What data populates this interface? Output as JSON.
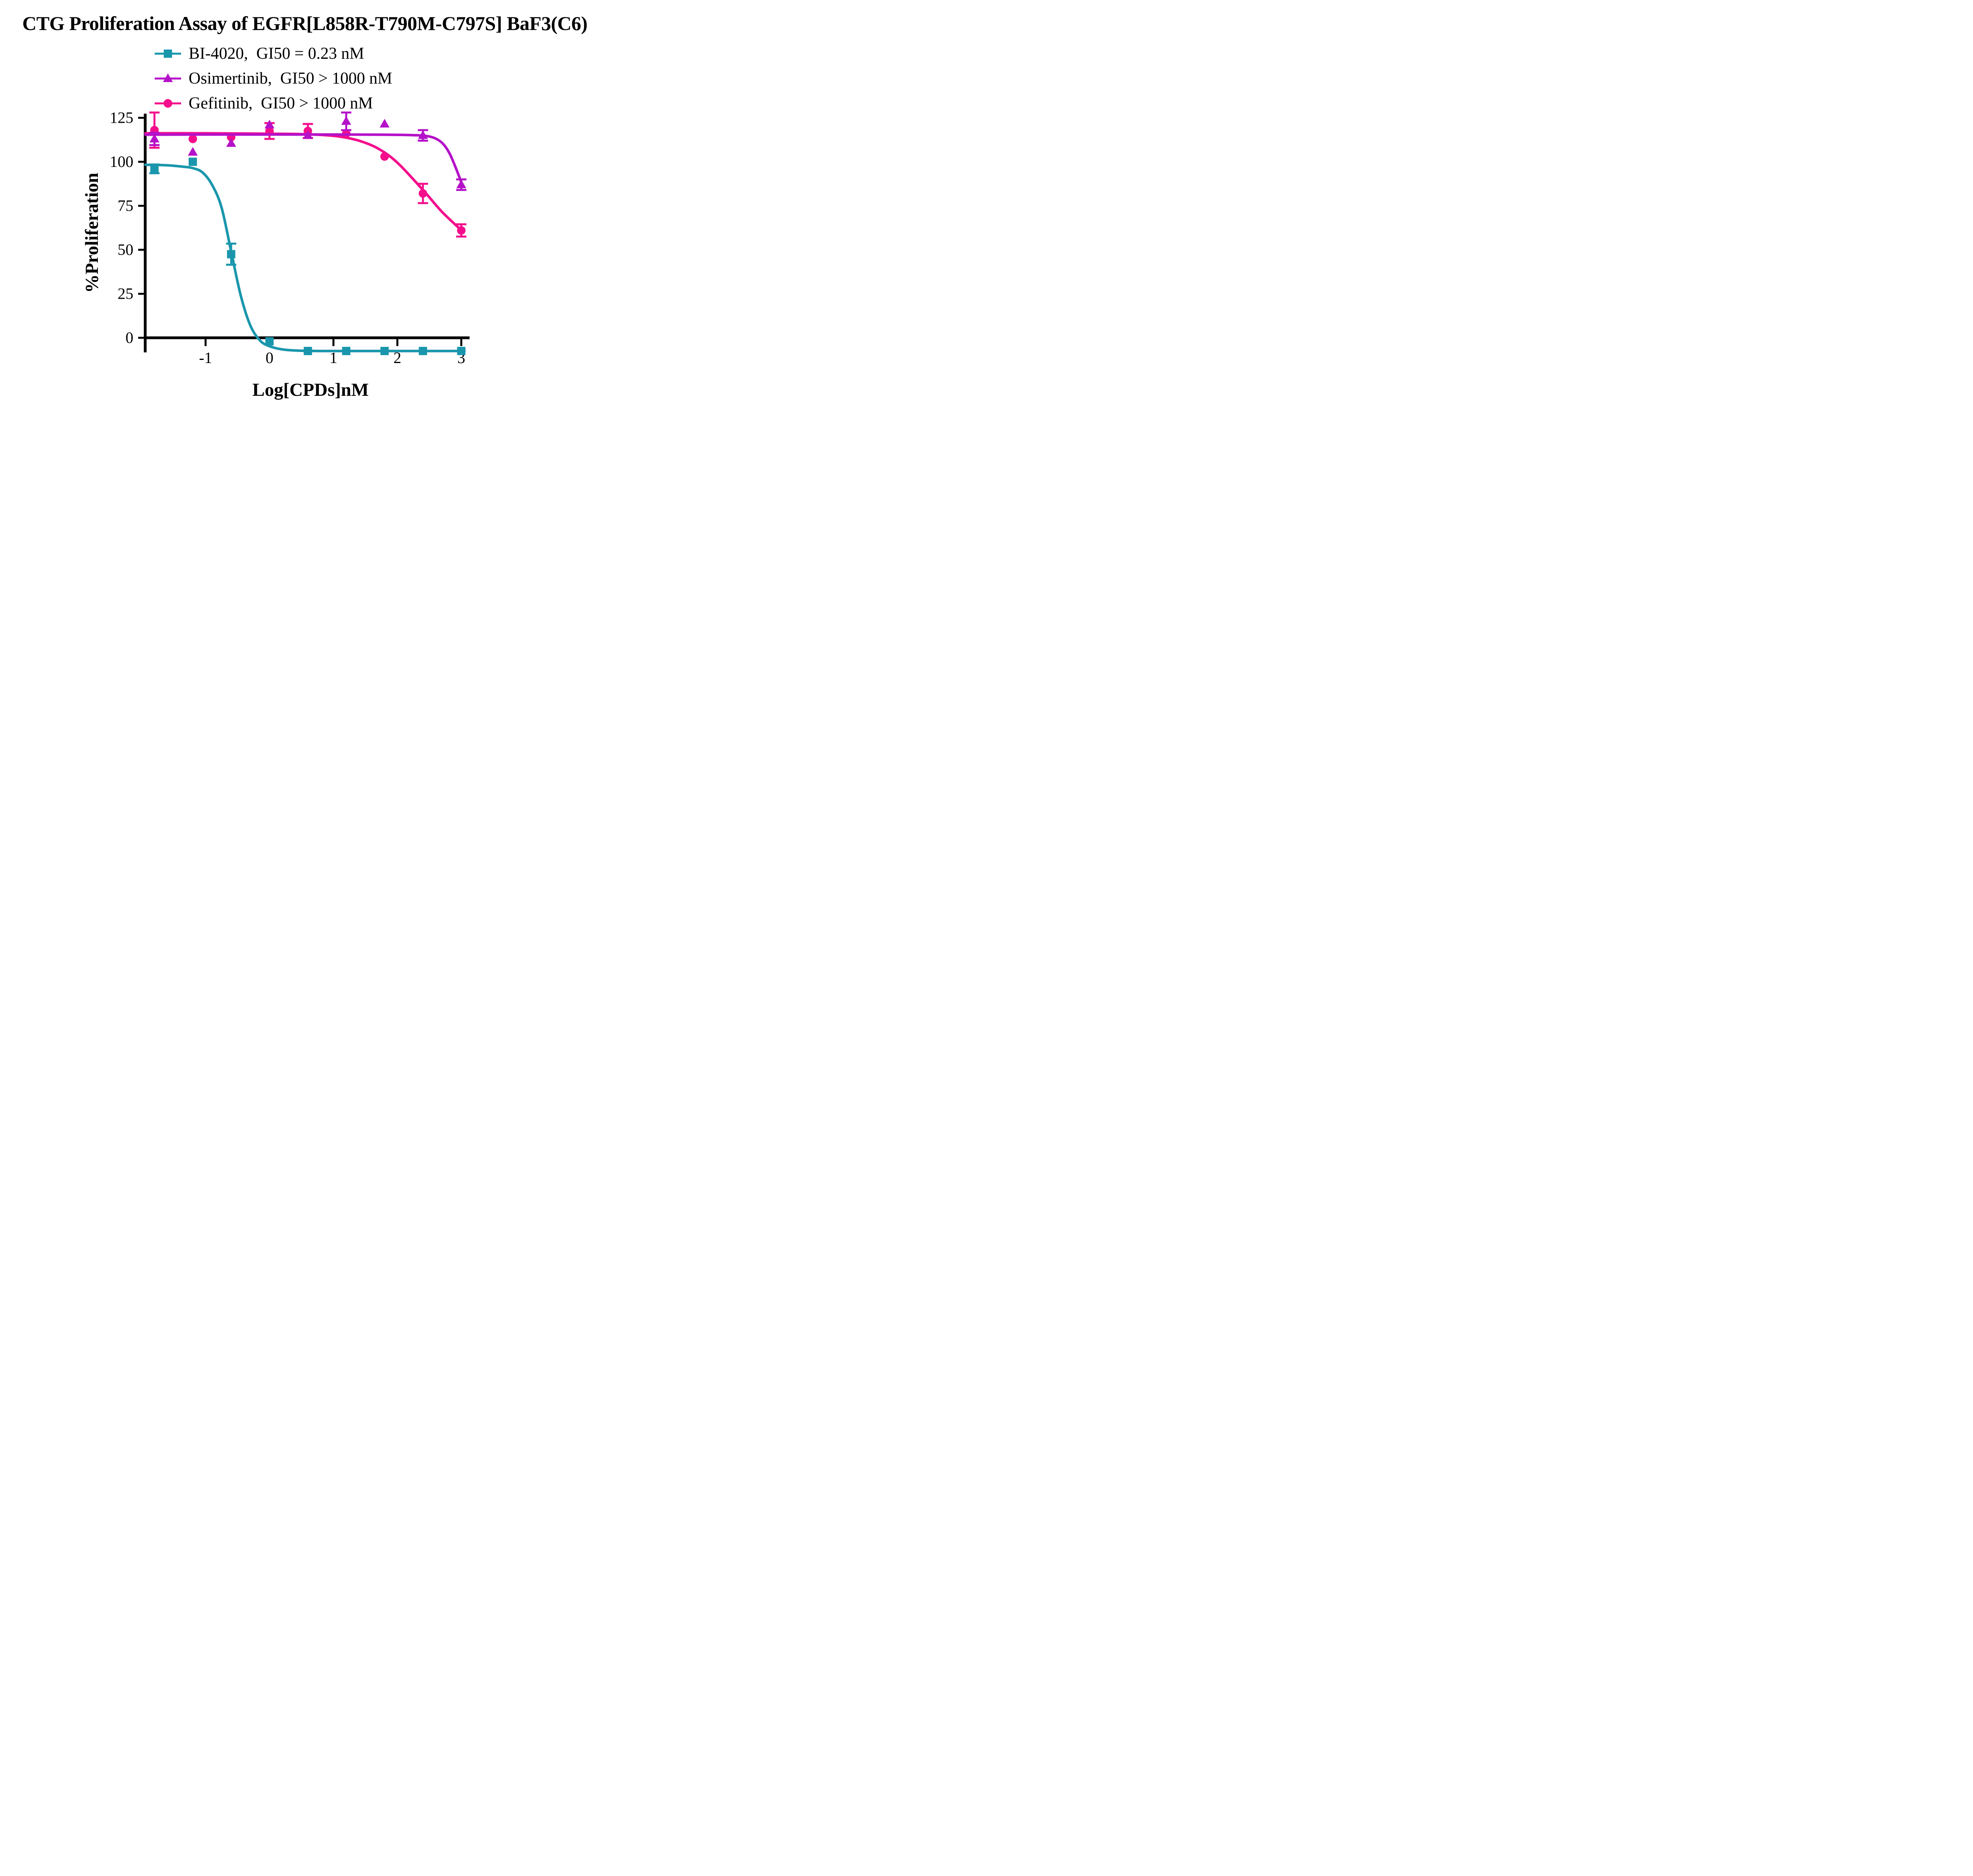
{
  "title": "CTG Proliferation Assay of EGFR[L858R-T790M-C797S] BaF3(C6)",
  "legend": {
    "items": [
      {
        "label": "BI-4020,  GI50 = 0.23 nM",
        "series": "BI-4020",
        "marker": "square",
        "color": "#1996AC"
      },
      {
        "label": "Osimertinib,  GI50 > 1000 nM",
        "series": "Osimertinib",
        "marker": "triangle",
        "color": "#B511C9"
      },
      {
        "label": "Gefitinib,  GI50 > 1000 nM",
        "series": "Gefitinib",
        "marker": "circle",
        "color": "#F40E8C"
      }
    ]
  },
  "axes": {
    "x_title": "Log[CPDs]nM",
    "y_title": "%Proliferation",
    "x_ticks": [
      -1,
      0,
      1,
      2,
      3
    ],
    "y_ticks": [
      0,
      25,
      50,
      75,
      100,
      125
    ],
    "x_range": [
      -1.94,
      3.13
    ],
    "y_axis_top_value": 127.5,
    "y_axis_bottom_value": -8.2,
    "grid": false
  },
  "chart_data": {
    "type": "scatter",
    "x_label": "Log[CPDs]nM",
    "y_label": "%Proliferation",
    "x": [
      -1.8,
      -1.2,
      -0.6,
      0,
      0.6,
      1.2,
      1.8,
      2.4,
      3
    ],
    "series": [
      {
        "name": "Gefitinib",
        "gi50": "GI50 > 1000 nM",
        "color": "#F40E8C",
        "marker": "circle",
        "values": [
          118,
          113,
          114,
          117.5,
          117.5,
          116,
          103,
          82,
          61
        ],
        "sem": [
          10,
          0,
          0,
          4.5,
          4,
          0,
          0,
          5.5,
          3.5
        ],
        "fit_curve": [
          [
            -1.94,
            116.2
          ],
          [
            -1.0,
            116.2
          ],
          [
            -0.2,
            116.0
          ],
          [
            0.4,
            115.8
          ],
          [
            0.8,
            115.3
          ],
          [
            1.1,
            114.3
          ],
          [
            1.4,
            112.0
          ],
          [
            1.7,
            107.5
          ],
          [
            2.0,
            99.5
          ],
          [
            2.4,
            84.0
          ],
          [
            2.7,
            71.5
          ],
          [
            3.02,
            60.5
          ]
        ]
      },
      {
        "name": "Osimertinib",
        "gi50": "GI50 > 1000 nM",
        "color": "#B511C9",
        "marker": "triangle",
        "values": [
          113,
          105.5,
          110.5,
          121,
          115,
          123,
          121.5,
          115,
          87
        ],
        "sem": [
          3.5,
          0,
          0,
          0,
          0,
          5,
          0,
          3,
          3
        ],
        "fit_curve": [
          [
            -1.94,
            115.4
          ],
          [
            -1.0,
            115.5
          ],
          [
            0.0,
            115.5
          ],
          [
            1.0,
            115.5
          ],
          [
            1.8,
            115.4
          ],
          [
            2.2,
            115.2
          ],
          [
            2.45,
            114.7
          ],
          [
            2.6,
            113.2
          ],
          [
            2.72,
            110.0
          ],
          [
            2.82,
            104.5
          ],
          [
            2.92,
            96.0
          ],
          [
            3.02,
            86.5
          ]
        ]
      },
      {
        "name": "BI-4020",
        "gi50": "GI50 = 0.23 nM",
        "color": "#1996AC",
        "marker": "square",
        "values": [
          96,
          100,
          47.5,
          -2,
          -7.5,
          -7.5,
          -7.5,
          -7.5,
          -7.5
        ],
        "sem": [
          2.5,
          0,
          6,
          0,
          0,
          0,
          0,
          0,
          0
        ],
        "fit_curve": [
          [
            -1.94,
            98.3
          ],
          [
            -1.6,
            98.0
          ],
          [
            -1.35,
            97.2
          ],
          [
            -1.2,
            96.4
          ],
          [
            -1.05,
            94.0
          ],
          [
            -0.9,
            87.0
          ],
          [
            -0.75,
            74.0
          ],
          [
            -0.6,
            49.0
          ],
          [
            -0.45,
            24.0
          ],
          [
            -0.3,
            7.0
          ],
          [
            -0.15,
            -1.5
          ],
          [
            0.0,
            -4.8
          ],
          [
            0.2,
            -6.6
          ],
          [
            0.45,
            -7.3
          ],
          [
            0.8,
            -7.5
          ],
          [
            1.5,
            -7.5
          ],
          [
            2.3,
            -7.5
          ],
          [
            3.05,
            -7.5
          ]
        ]
      }
    ]
  }
}
